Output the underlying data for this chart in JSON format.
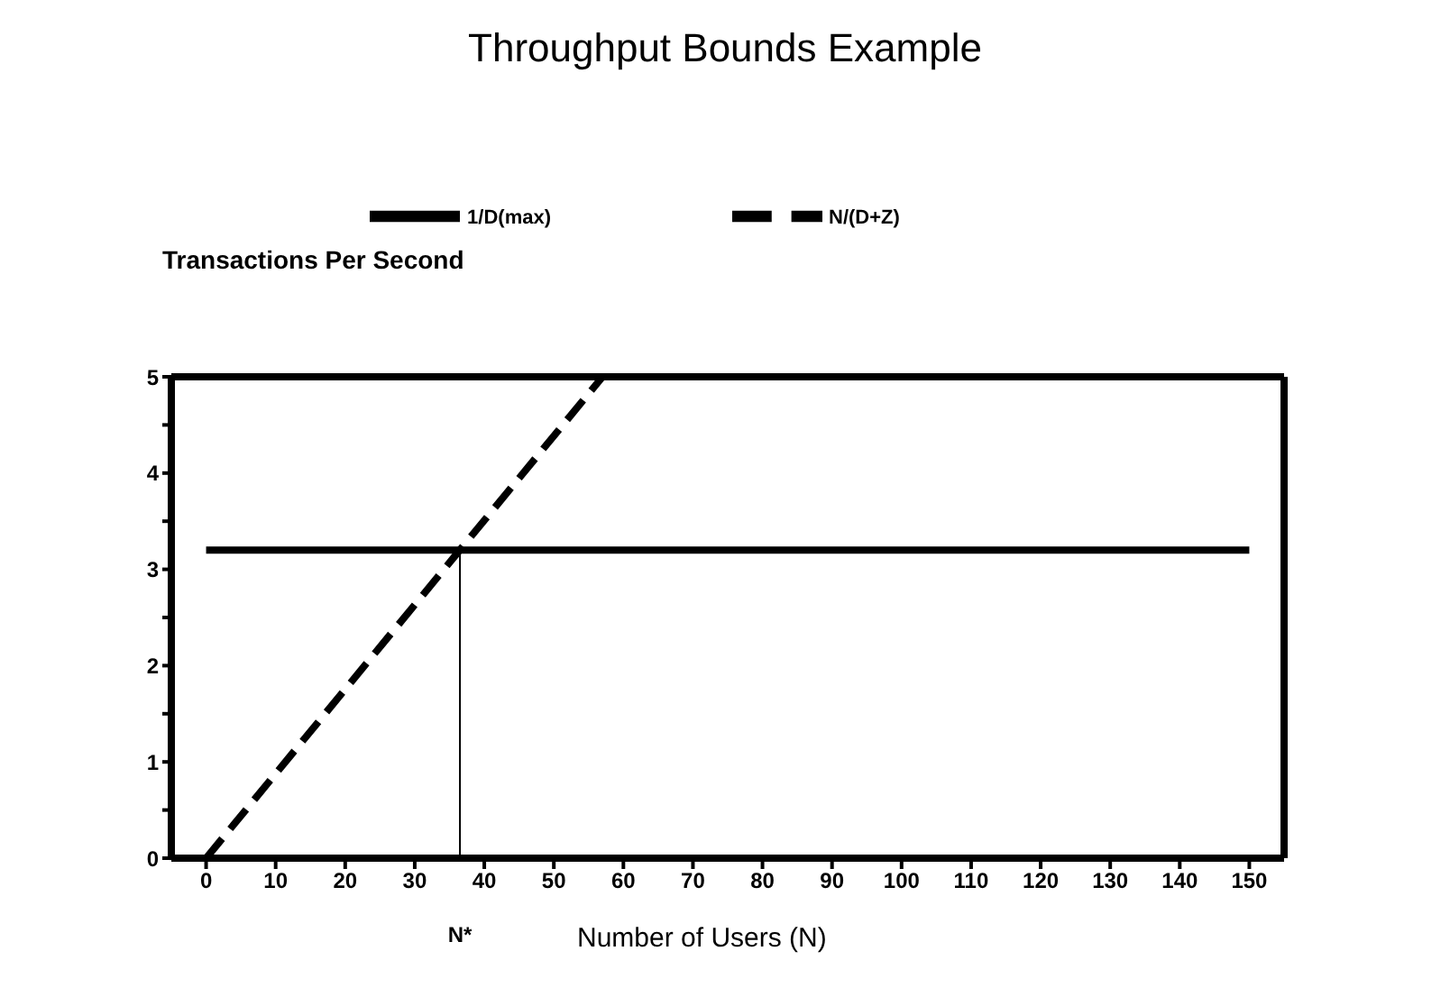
{
  "chart_data": {
    "type": "line",
    "title": "Throughput Bounds Example",
    "xlabel": "Number of Users (N)",
    "ylabel": "Transactions Per Second",
    "series": [
      {
        "name": "1/D(max)",
        "color": "#000000",
        "x": [
          0,
          150
        ],
        "values": [
          3.2,
          3.2
        ],
        "line_style": "solid"
      },
      {
        "name": "N/(D+Z)",
        "color": "#000000",
        "x": [
          0,
          57
        ],
        "values": [
          0,
          5
        ],
        "line_style": "dashed"
      },
      {
        "color": "#000000",
        "x": [
          36.5,
          36.5
        ],
        "values": [
          0,
          3.2
        ],
        "line_style": "solid"
      }
    ],
    "annotations": [
      {
        "text": "N*",
        "x": 36.5,
        "y": 0
      }
    ],
    "xlim": [
      -5,
      155
    ],
    "xticks": [
      0,
      10,
      20,
      30,
      40,
      50,
      60,
      70,
      80,
      90,
      100,
      110,
      120,
      130,
      140,
      150
    ],
    "ylim": [
      0,
      5
    ],
    "yticks": [
      0,
      {
        "value": 0.5,
        "label": null
      },
      1,
      {
        "value": 1.5,
        "label": null
      },
      2,
      {
        "value": 2.5,
        "label": null
      },
      3,
      {
        "value": 3.5,
        "label": null
      },
      4,
      {
        "value": 4.5,
        "label": null
      },
      5
    ],
    "legend": "top",
    "marker": "none"
  }
}
